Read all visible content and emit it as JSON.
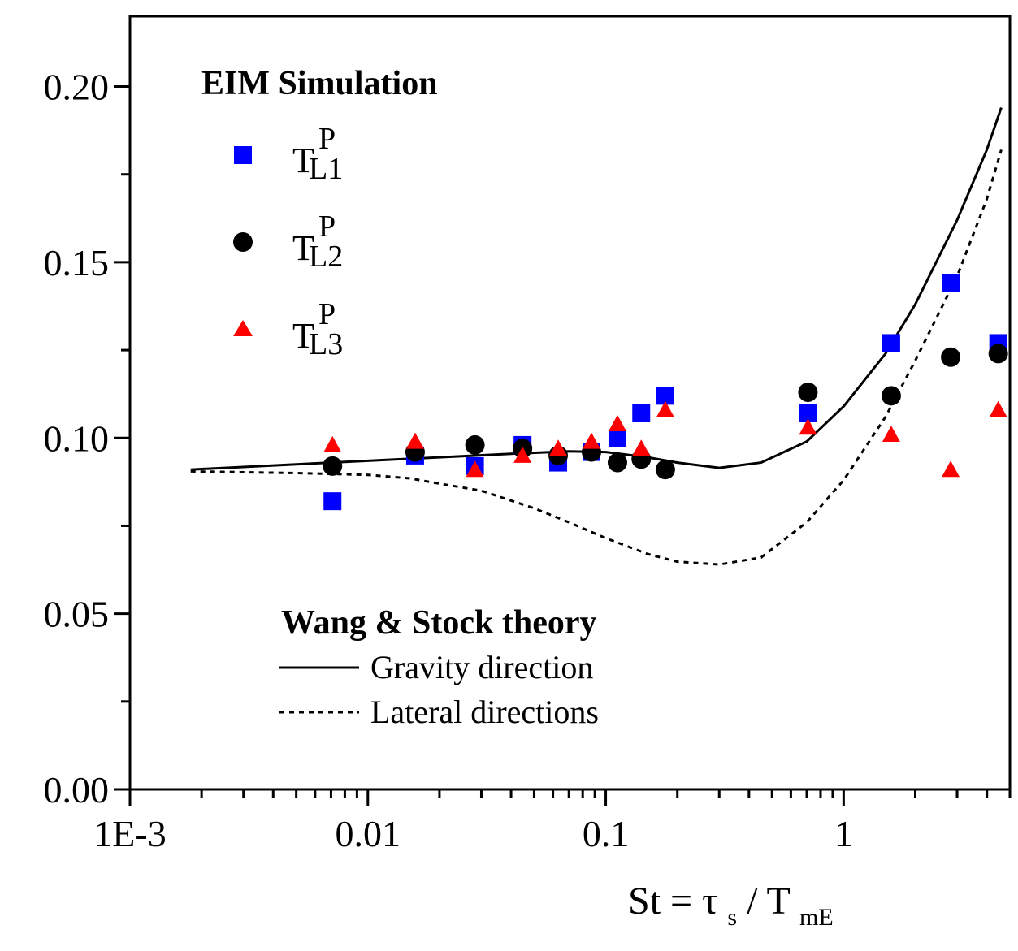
{
  "chart_data": {
    "type": "scatter",
    "xscale": "log",
    "xlim": [
      0.001,
      5.0
    ],
    "ylim": [
      0.0,
      0.22
    ],
    "xticks": [
      {
        "value": 0.001,
        "label": "1E-3"
      },
      {
        "value": 0.01,
        "label": "0.01"
      },
      {
        "value": 0.1,
        "label": "0.1"
      },
      {
        "value": 1,
        "label": "1"
      }
    ],
    "yticks": [
      {
        "value": 0.0,
        "label": "0.00"
      },
      {
        "value": 0.05,
        "label": "0.05"
      },
      {
        "value": 0.1,
        "label": "0.10"
      },
      {
        "value": 0.15,
        "label": "0.15"
      },
      {
        "value": 0.2,
        "label": "0.20"
      }
    ],
    "xlabel": {
      "main": "St = τ",
      "sub1": "s",
      "mid": " / T",
      "sub2": "mE"
    },
    "legend_sim": {
      "title": "EIM  Simulation",
      "entries": [
        {
          "base": "T",
          "sup": "P",
          "sub": "L1",
          "marker": "square",
          "color": "#0000ff"
        },
        {
          "base": "T",
          "sup": "P",
          "sub": "L2",
          "marker": "circle",
          "color": "#000000"
        },
        {
          "base": "T",
          "sup": "P",
          "sub": "L3",
          "marker": "triangle",
          "color": "#ff0000"
        }
      ]
    },
    "legend_theory": {
      "title": "Wang & Stock theory",
      "entries": [
        {
          "label": "Gravity direction",
          "style": "solid"
        },
        {
          "label": "Lateral directions",
          "style": "dotted"
        }
      ]
    },
    "series": [
      {
        "name": "T_L1^P",
        "marker": "square",
        "color": "#0000ff",
        "points": [
          [
            0.0071,
            0.082
          ],
          [
            0.0158,
            0.095
          ],
          [
            0.0282,
            0.092
          ],
          [
            0.0447,
            0.098
          ],
          [
            0.0631,
            0.093
          ],
          [
            0.0871,
            0.096
          ],
          [
            0.112,
            0.1
          ],
          [
            0.141,
            0.107
          ],
          [
            0.178,
            0.112
          ],
          [
            0.708,
            0.107
          ],
          [
            1.585,
            0.127
          ],
          [
            2.818,
            0.144
          ],
          [
            4.467,
            0.127
          ]
        ]
      },
      {
        "name": "T_L2^P",
        "marker": "circle",
        "color": "#000000",
        "points": [
          [
            0.0071,
            0.092
          ],
          [
            0.0158,
            0.096
          ],
          [
            0.0282,
            0.098
          ],
          [
            0.0447,
            0.097
          ],
          [
            0.0631,
            0.095
          ],
          [
            0.0871,
            0.096
          ],
          [
            0.112,
            0.093
          ],
          [
            0.141,
            0.094
          ],
          [
            0.178,
            0.091
          ],
          [
            0.708,
            0.113
          ],
          [
            1.585,
            0.112
          ],
          [
            2.818,
            0.123
          ],
          [
            4.467,
            0.124
          ]
        ]
      },
      {
        "name": "T_L3^P",
        "marker": "triangle",
        "color": "#ff0000",
        "points": [
          [
            0.0071,
            0.098
          ],
          [
            0.0158,
            0.099
          ],
          [
            0.0282,
            0.091
          ],
          [
            0.0447,
            0.095
          ],
          [
            0.0631,
            0.097
          ],
          [
            0.0871,
            0.099
          ],
          [
            0.112,
            0.104
          ],
          [
            0.141,
            0.097
          ],
          [
            0.178,
            0.108
          ],
          [
            0.708,
            0.103
          ],
          [
            1.585,
            0.101
          ],
          [
            2.818,
            0.091
          ],
          [
            4.467,
            0.108
          ]
        ]
      }
    ],
    "lines": [
      {
        "name": "Gravity direction",
        "style": "solid",
        "points": [
          [
            0.0018,
            0.091
          ],
          [
            0.005,
            0.0925
          ],
          [
            0.01,
            0.0935
          ],
          [
            0.02,
            0.0945
          ],
          [
            0.04,
            0.0955
          ],
          [
            0.07,
            0.0962
          ],
          [
            0.1,
            0.096
          ],
          [
            0.15,
            0.0945
          ],
          [
            0.2,
            0.093
          ],
          [
            0.3,
            0.0915
          ],
          [
            0.45,
            0.093
          ],
          [
            0.7,
            0.099
          ],
          [
            1.0,
            0.109
          ],
          [
            1.5,
            0.124
          ],
          [
            2.0,
            0.138
          ],
          [
            3.0,
            0.162
          ],
          [
            4.0,
            0.182
          ],
          [
            4.6,
            0.194
          ]
        ]
      },
      {
        "name": "Lateral directions",
        "style": "dotted",
        "points": [
          [
            0.0018,
            0.0905
          ],
          [
            0.005,
            0.09
          ],
          [
            0.01,
            0.0895
          ],
          [
            0.015,
            0.0885
          ],
          [
            0.02,
            0.087
          ],
          [
            0.03,
            0.085
          ],
          [
            0.05,
            0.08
          ],
          [
            0.07,
            0.076
          ],
          [
            0.1,
            0.0715
          ],
          [
            0.15,
            0.067
          ],
          [
            0.2,
            0.0648
          ],
          [
            0.3,
            0.064
          ],
          [
            0.45,
            0.066
          ],
          [
            0.7,
            0.076
          ],
          [
            1.0,
            0.088
          ],
          [
            1.5,
            0.106
          ],
          [
            2.0,
            0.122
          ],
          [
            3.0,
            0.146
          ],
          [
            4.0,
            0.168
          ],
          [
            4.6,
            0.182
          ]
        ]
      }
    ]
  }
}
